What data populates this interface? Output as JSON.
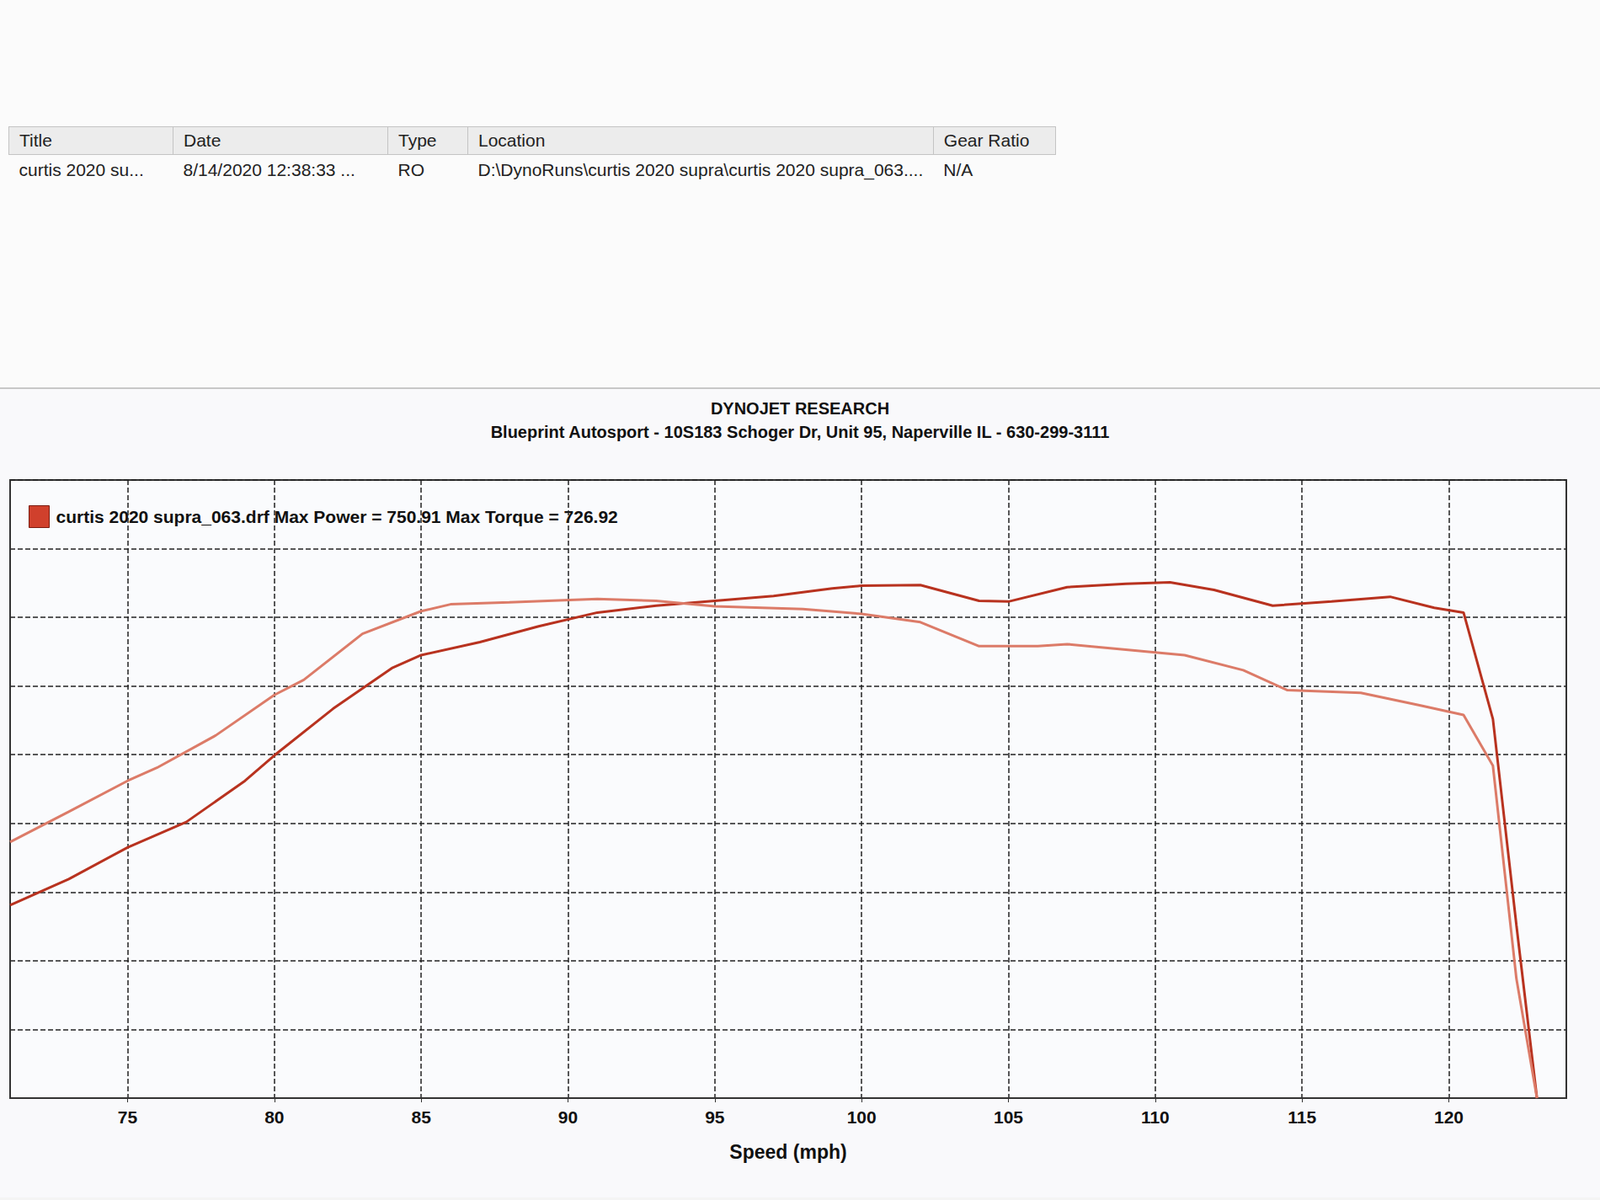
{
  "file_list": {
    "columns": [
      "Title",
      "Date",
      "Type",
      "Location",
      "Gear Ratio"
    ],
    "rows": [
      [
        "curtis 2020 su...",
        "8/14/2020 12:38:33 ...",
        "RO",
        "D:\\DynoRuns\\curtis 2020 supra\\curtis 2020 supra_063....",
        "N/A"
      ]
    ]
  },
  "chart_data": {
    "type": "line",
    "title": "DYNOJET RESEARCH",
    "subtitle": "Blueprint Autosport - 10S183 Schoger Dr, Unit 95, Naperville IL - 630-299-3111",
    "annotation": "curtis 2020 supra_063.drf Max Power = 750.91 Max Torque = 726.92",
    "annotation_color": "#d0402c",
    "x_label": "Speed (mph)",
    "xlim": [
      71,
      124
    ],
    "xticks": [
      75,
      80,
      85,
      90,
      95,
      100,
      105,
      110,
      115,
      120
    ],
    "ylim": [
      0,
      900
    ],
    "yticks": [
      0,
      100,
      200,
      300,
      400,
      500,
      600,
      700,
      800,
      900
    ],
    "grid": true,
    "tick_labels": "x",
    "series": [
      {
        "color": "#b8321f",
        "x": [
          71,
          73,
          75,
          77,
          79,
          80,
          82,
          84,
          85,
          87,
          89,
          91,
          93,
          95,
          97,
          99,
          100,
          102,
          104,
          105,
          107,
          109,
          110.5,
          112,
          114,
          116,
          118,
          119.5,
          120.5,
          121.5,
          122.3,
          123
        ],
        "values": [
          281,
          319,
          365,
          402,
          462,
          499,
          567,
          626,
          645,
          664,
          687,
          707,
          717,
          724,
          731,
          742,
          746,
          747,
          724,
          723,
          744,
          749,
          750.91,
          740,
          717,
          723,
          730,
          714,
          707,
          552,
          252,
          0
        ]
      },
      {
        "color": "#dc7b68",
        "x": [
          71,
          73,
          75,
          76,
          78,
          80,
          81,
          83,
          85,
          86,
          88,
          91,
          93,
          95,
          98,
          100,
          102,
          104,
          106,
          107,
          109,
          111,
          113,
          114.5,
          117,
          119,
          120.5,
          121.5,
          122.3,
          123
        ],
        "values": [
          373,
          417,
          462,
          481,
          528,
          587,
          609,
          676,
          709,
          719,
          722,
          726.92,
          724,
          716,
          712,
          705,
          693,
          658,
          658,
          661,
          653,
          645,
          623,
          594,
          590,
          572,
          558,
          484,
          174,
          0
        ]
      }
    ]
  }
}
